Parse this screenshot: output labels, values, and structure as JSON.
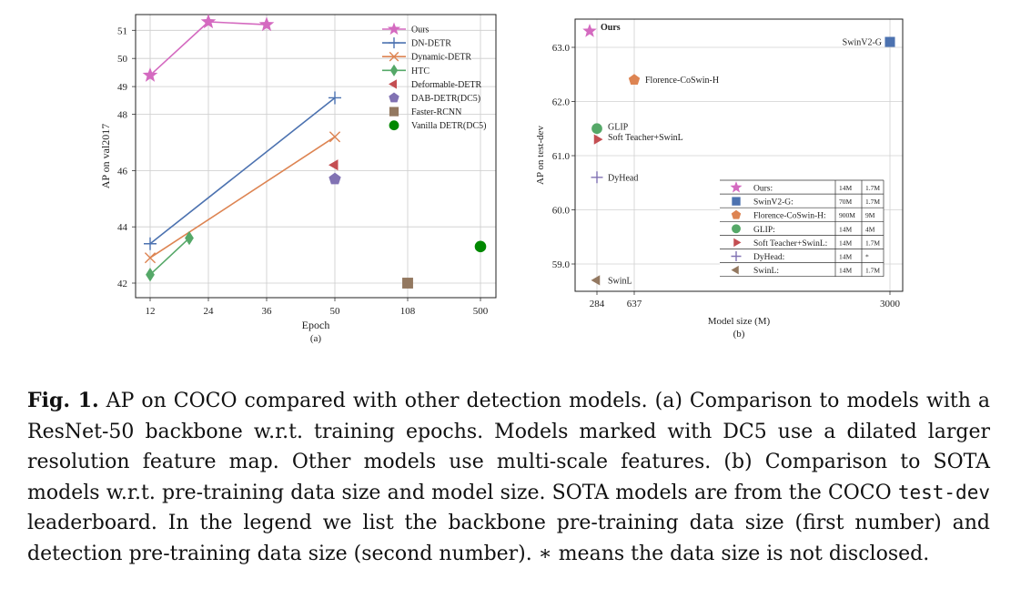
{
  "figure": {
    "caption_label": "Fig. 1.",
    "caption_parts": [
      " AP on COCO compared with other detection models. (a) Comparison to models with a ResNet-50 backbone w.r.t. training epochs. Models marked with DC5 use a dilated larger resolution feature map. Other models use multi-scale features. (b) Comparison to SOTA models w.r.t. pre-training data size and model size. SOTA models are from the COCO ",
      "test-dev",
      " leaderboard. In the legend we list the backbone pre-training data size (first number) and detection pre-training data size (second number). ∗ means the data size is not disclosed."
    ]
  },
  "colors": {
    "ours": "#d46ac0",
    "dn_detr": "#4c72b0",
    "dynamic_detr": "#dd8452",
    "htc": "#55a868",
    "deformable_detr": "#c44e52",
    "dab_detr": "#8172b3",
    "faster_rcnn": "#937860",
    "vanilla_detr": "#008800",
    "swinv2": "#4c72b0",
    "florence": "#dd8452",
    "glip": "#55a868",
    "soft_teacher": "#c44e52",
    "dyhead": "#8172b3",
    "swinl": "#937860"
  },
  "chart_data": [
    {
      "type": "line",
      "subtitle": "(a)",
      "xlabel": "Epoch",
      "ylabel": "AP on val2017",
      "x_ticks": [
        "12",
        "24",
        "36",
        "50",
        "108",
        "500"
      ],
      "y_ticks": [
        "42",
        "44",
        "46",
        "48",
        "49",
        "50",
        "51"
      ],
      "series": [
        {
          "name": "Ours",
          "marker": "star",
          "line": true,
          "points": [
            {
              "x": "12",
              "y": 49.4
            },
            {
              "x": "24",
              "y": 51.3
            },
            {
              "x": "36",
              "y": 51.2
            }
          ]
        },
        {
          "name": "DN-DETR",
          "marker": "plus",
          "line": true,
          "points": [
            {
              "x": "12",
              "y": 43.4
            },
            {
              "x": "50",
              "y": 48.6
            }
          ]
        },
        {
          "name": "Dynamic-DETR",
          "marker": "x",
          "line": true,
          "points": [
            {
              "x": "12",
              "y": 42.9
            },
            {
              "x": "50",
              "y": 47.2
            }
          ]
        },
        {
          "name": "HTC",
          "marker": "diamond",
          "line": true,
          "points": [
            {
              "x": "12",
              "y": 42.3
            },
            {
              "x": "20",
              "y": 43.6
            }
          ]
        },
        {
          "name": "Deformable-DETR",
          "marker": "triangle-left",
          "line": false,
          "points": [
            {
              "x": "50",
              "y": 46.2
            }
          ]
        },
        {
          "name": "DAB-DETR(DC5)",
          "marker": "pentagon",
          "line": false,
          "points": [
            {
              "x": "50",
              "y": 45.7
            }
          ]
        },
        {
          "name": "Faster-RCNN",
          "marker": "square",
          "line": false,
          "points": [
            {
              "x": "108",
              "y": 42.0
            }
          ]
        },
        {
          "name": "Vanilla DETR(DC5)",
          "marker": "circle",
          "line": false,
          "points": [
            {
              "x": "500",
              "y": 43.3
            }
          ]
        }
      ]
    },
    {
      "type": "scatter",
      "subtitle": "(b)",
      "xlabel": "Model size (M)",
      "ylabel": "AP on test-dev",
      "x_ticks": [
        284,
        637,
        3000
      ],
      "x_range": [
        250,
        3050
      ],
      "y_ticks": [
        "59.0",
        "60.0",
        "61.0",
        "62.0",
        "63.0"
      ],
      "y_range": [
        58.5,
        63.6
      ],
      "points": [
        {
          "name": "Ours",
          "label": "Ours",
          "marker": "star",
          "x": 218,
          "y": 63.3,
          "backbone": "14M",
          "detection": "1.7M"
        },
        {
          "name": "SwinV2-G",
          "label": "SwinV2-G",
          "marker": "square",
          "x": 3000,
          "y": 63.1,
          "backbone": "70M",
          "detection": "1.7M"
        },
        {
          "name": "Florence-CoSwin-H",
          "label": "Florence-CoSwin-H",
          "marker": "pentagon",
          "x": 637,
          "y": 62.4,
          "backbone": "900M",
          "detection": "9M"
        },
        {
          "name": "GLIP",
          "label": "GLIP",
          "marker": "circle",
          "x": 284,
          "y": 61.5,
          "backbone": "14M",
          "detection": "4M"
        },
        {
          "name": "Soft Teacher+SwinL",
          "label": "Soft Teacher+SwinL",
          "marker": "triangle-right",
          "x": 284,
          "y": 61.3,
          "backbone": "14M",
          "detection": "1.7M"
        },
        {
          "name": "DyHead",
          "label": "DyHead",
          "marker": "plus",
          "x": 284,
          "y": 60.6,
          "backbone": "14M",
          "detection": "*"
        },
        {
          "name": "SwinL",
          "label": "SwinL",
          "marker": "triangle-left",
          "x": 284,
          "y": 58.7,
          "backbone": "14M",
          "detection": "1.7M"
        }
      ],
      "legend": [
        {
          "label": "Ours:",
          "marker": "star",
          "backbone": "14M",
          "detection": "1.7M"
        },
        {
          "label": "SwinV2-G:",
          "marker": "square",
          "backbone": "70M",
          "detection": "1.7M"
        },
        {
          "label": "Florence-CoSwin-H:",
          "marker": "pentagon",
          "backbone": "900M",
          "detection": "9M"
        },
        {
          "label": "GLIP:",
          "marker": "circle",
          "backbone": "14M",
          "detection": "4M"
        },
        {
          "label": "Soft Teacher+SwinL:",
          "marker": "triangle-right",
          "backbone": "14M",
          "detection": "1.7M"
        },
        {
          "label": "DyHead:",
          "marker": "plus",
          "backbone": "14M",
          "detection": "*"
        },
        {
          "label": "SwinL:",
          "marker": "triangle-left",
          "backbone": "14M",
          "detection": "1.7M"
        }
      ]
    }
  ]
}
